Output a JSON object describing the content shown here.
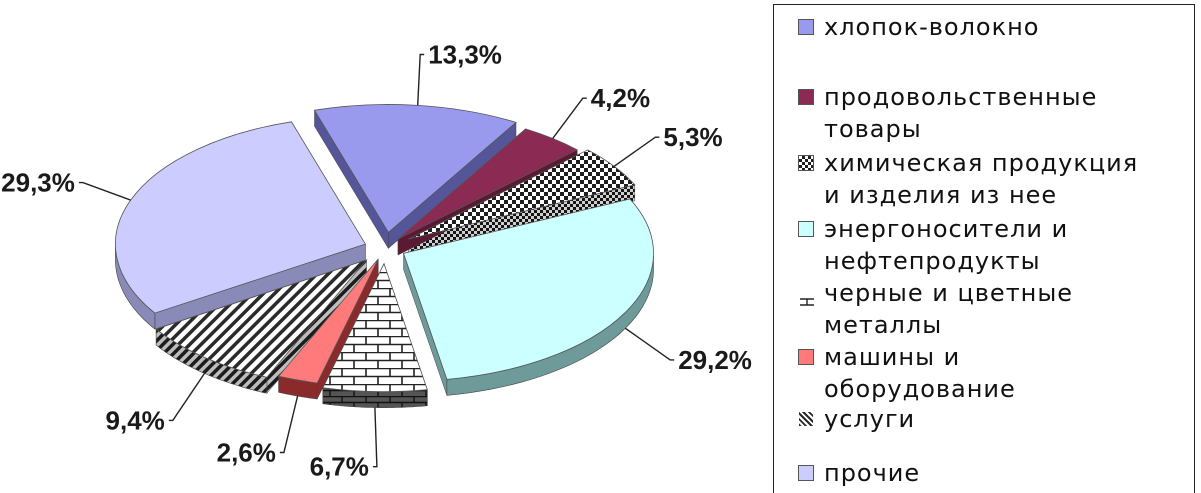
{
  "chart_data": {
    "type": "pie",
    "title": "",
    "slices": [
      {
        "label": "хлопок-волокно",
        "value": 13.3,
        "value_label": "13,3%",
        "color": "#9999ee",
        "side_color": "#55559a",
        "pattern": "solid"
      },
      {
        "label": "продовольственные\nтовары",
        "value": 4.2,
        "value_label": "4,2%",
        "color": "#8b2a52",
        "side_color": "#5a1a34",
        "pattern": "solid"
      },
      {
        "label": "химическая продукция\nи изделия из нее",
        "value": 5.3,
        "value_label": "5,3%",
        "color": "#2b2b2b",
        "side_color": "#1a1a1a",
        "pattern": "checker"
      },
      {
        "label": "энергоносители и\nнефтепродукты",
        "value": 29.2,
        "value_label": "29,2%",
        "color": "#ccffff",
        "side_color": "#6f9a9a",
        "pattern": "solid"
      },
      {
        "label": "черные и цветные\nметаллы",
        "value": 6.7,
        "value_label": "6,7%",
        "color": "#2b2b2b",
        "side_color": "#333333",
        "pattern": "brick"
      },
      {
        "label": "машины и\nоборудование",
        "value": 2.6,
        "value_label": "2,6%",
        "color": "#ff7b7b",
        "side_color": "#8a2a2a",
        "pattern": "solid"
      },
      {
        "label": "услуги",
        "value": 9.4,
        "value_label": "9,4%",
        "color": "#2b2b2b",
        "side_color": "#222222",
        "pattern": "diagonal"
      },
      {
        "label": "прочие",
        "value": 29.3,
        "value_label": "29,3%",
        "color": "#ccccff",
        "side_color": "#8a8ab8",
        "pattern": "solid"
      }
    ],
    "legend_position": "right"
  }
}
